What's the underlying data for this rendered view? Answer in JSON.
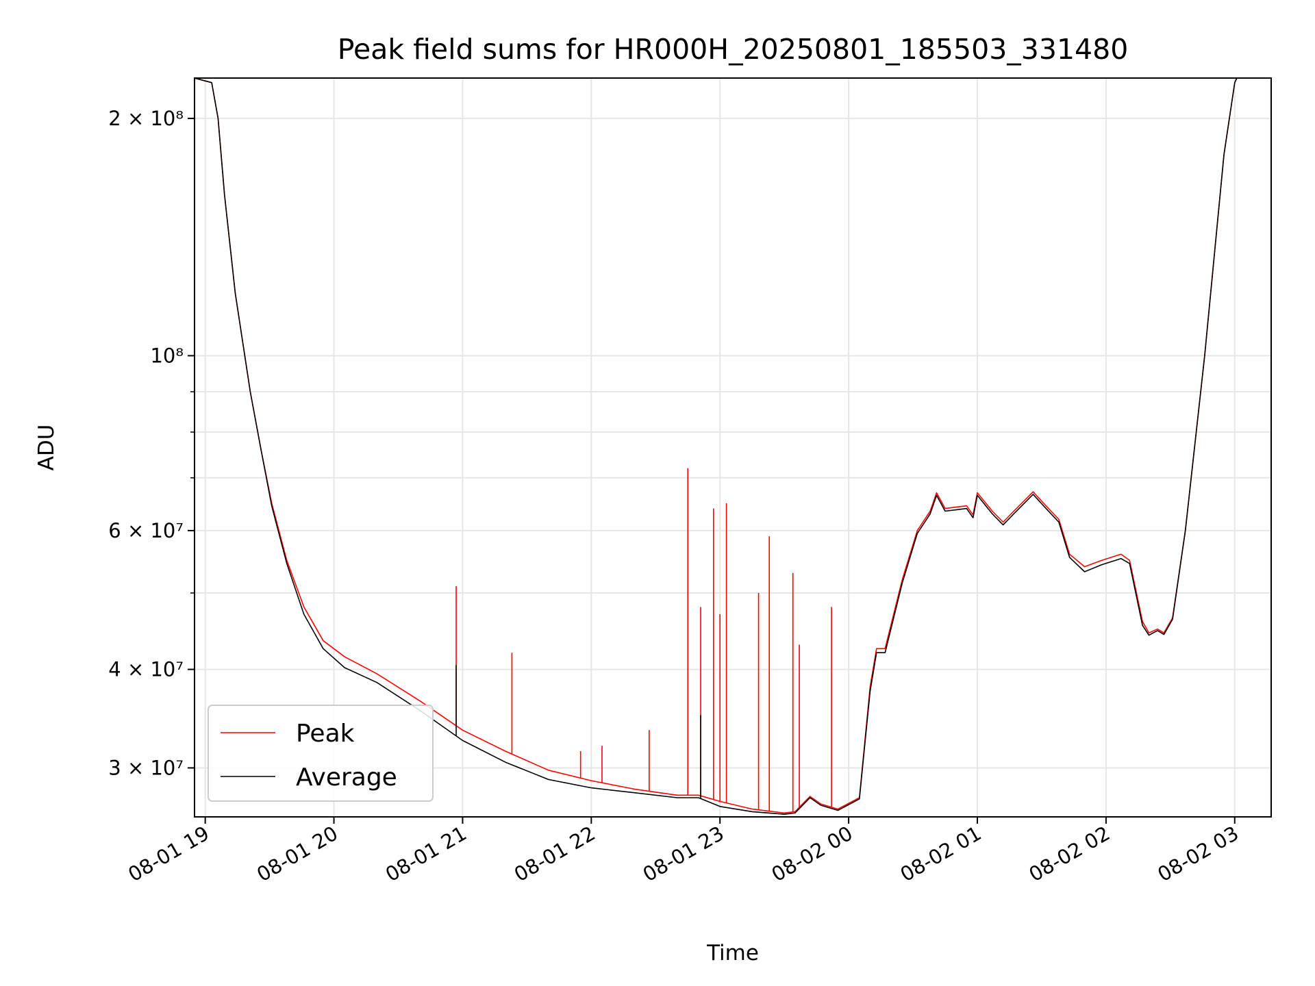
{
  "chart_data": {
    "type": "line",
    "title": "Peak field sums for HR000H_20250801_185503_331480",
    "xlabel": "Time",
    "ylabel": "ADU",
    "x_scale": "time",
    "y_scale": "log",
    "xlim": [
      "2025-08-01 18:55",
      "2025-08-02 03:17"
    ],
    "ylim": [
      26000000,
      225000000
    ],
    "grid": true,
    "legend": {
      "position": "lower-left"
    },
    "x_ticks": [
      {
        "value": "2025-08-01 19:00",
        "label": "08-01 19"
      },
      {
        "value": "2025-08-01 20:00",
        "label": "08-01 20"
      },
      {
        "value": "2025-08-01 21:00",
        "label": "08-01 21"
      },
      {
        "value": "2025-08-01 22:00",
        "label": "08-01 22"
      },
      {
        "value": "2025-08-01 23:00",
        "label": "08-01 23"
      },
      {
        "value": "2025-08-02 00:00",
        "label": "08-02 00"
      },
      {
        "value": "2025-08-02 01:00",
        "label": "08-02 01"
      },
      {
        "value": "2025-08-02 02:00",
        "label": "08-02 02"
      },
      {
        "value": "2025-08-02 03:00",
        "label": "08-02 03"
      }
    ],
    "y_ticks": [
      {
        "value": 30000000,
        "label": "3 × 10⁷"
      },
      {
        "value": 40000000,
        "label": "4 × 10⁷"
      },
      {
        "value": 60000000,
        "label": "6 × 10⁷"
      },
      {
        "value": 100000000,
        "label": "10⁸"
      },
      {
        "value": 200000000,
        "label": "2 × 10⁸"
      }
    ],
    "series": [
      {
        "name": "Peak",
        "color": "#ff0000",
        "points": [
          [
            "2025-08-01 18:55",
            225000000
          ],
          [
            "2025-08-01 19:03",
            222000000
          ],
          [
            "2025-08-01 19:06",
            200000000
          ],
          [
            "2025-08-01 19:09",
            160000000
          ],
          [
            "2025-08-01 19:14",
            120000000
          ],
          [
            "2025-08-01 19:21",
            90000000
          ],
          [
            "2025-08-01 19:26",
            76000000
          ],
          [
            "2025-08-01 19:31",
            65000000
          ],
          [
            "2025-08-01 19:38",
            55000000
          ],
          [
            "2025-08-01 19:46",
            48000000
          ],
          [
            "2025-08-01 19:55",
            43500000
          ],
          [
            "2025-08-01 20:05",
            41500000
          ],
          [
            "2025-08-01 20:20",
            39500000
          ],
          [
            "2025-08-01 20:40",
            36500000
          ],
          [
            "2025-08-01 21:00",
            33500000
          ],
          [
            "2025-08-01 21:20",
            31500000
          ],
          [
            "2025-08-01 21:40",
            29800000
          ],
          [
            "2025-08-01 22:00",
            28900000
          ],
          [
            "2025-08-01 22:20",
            28200000
          ],
          [
            "2025-08-01 22:40",
            27700000
          ],
          [
            "2025-08-01 22:50",
            27700000
          ],
          [
            "2025-08-01 23:00",
            27200000
          ],
          [
            "2025-08-01 23:15",
            26600000
          ],
          [
            "2025-08-01 23:30",
            26300000
          ],
          [
            "2025-08-01 23:35",
            26400000
          ],
          [
            "2025-08-01 23:42",
            27600000
          ],
          [
            "2025-08-01 23:47",
            27000000
          ],
          [
            "2025-08-01 23:55",
            26600000
          ],
          [
            "2025-08-02 00:05",
            27500000
          ],
          [
            "2025-08-02 00:10",
            38000000
          ],
          [
            "2025-08-02 00:13",
            42500000
          ],
          [
            "2025-08-02 00:17",
            42500000
          ],
          [
            "2025-08-02 00:25",
            52000000
          ],
          [
            "2025-08-02 00:32",
            60000000
          ],
          [
            "2025-08-02 00:38",
            63500000
          ],
          [
            "2025-08-02 00:41",
            67000000
          ],
          [
            "2025-08-02 00:45",
            64000000
          ],
          [
            "2025-08-02 00:55",
            64500000
          ],
          [
            "2025-08-02 00:58",
            62800000
          ],
          [
            "2025-08-02 01:00",
            67000000
          ],
          [
            "2025-08-02 01:07",
            63500000
          ],
          [
            "2025-08-02 01:12",
            61500000
          ],
          [
            "2025-08-02 01:17",
            63500000
          ],
          [
            "2025-08-02 01:26",
            67200000
          ],
          [
            "2025-08-02 01:32",
            64500000
          ],
          [
            "2025-08-02 01:38",
            62000000
          ],
          [
            "2025-08-02 01:43",
            56000000
          ],
          [
            "2025-08-02 01:50",
            54000000
          ],
          [
            "2025-08-02 01:58",
            55000000
          ],
          [
            "2025-08-02 02:07",
            56000000
          ],
          [
            "2025-08-02 02:11",
            55000000
          ],
          [
            "2025-08-02 02:17",
            46000000
          ],
          [
            "2025-08-02 02:20",
            44500000
          ],
          [
            "2025-08-02 02:24",
            45000000
          ],
          [
            "2025-08-02 02:27",
            44500000
          ],
          [
            "2025-08-02 02:31",
            46500000
          ],
          [
            "2025-08-02 02:37",
            60000000
          ],
          [
            "2025-08-02 02:46",
            100000000
          ],
          [
            "2025-08-02 02:55",
            180000000
          ],
          [
            "2025-08-02 03:00",
            222000000
          ],
          [
            "2025-08-02 03:01",
            225000000
          ]
        ],
        "spikes": [
          [
            "2025-08-01 20:57",
            51000000
          ],
          [
            "2025-08-01 21:23",
            42000000
          ],
          [
            "2025-08-01 22:45",
            72000000
          ],
          [
            "2025-08-01 22:51",
            48000000
          ],
          [
            "2025-08-01 22:57",
            64000000
          ],
          [
            "2025-08-01 23:00",
            47000000
          ],
          [
            "2025-08-01 23:03",
            65000000
          ],
          [
            "2025-08-01 23:18",
            50000000
          ],
          [
            "2025-08-01 23:23",
            59000000
          ],
          [
            "2025-08-01 23:34",
            53000000
          ],
          [
            "2025-08-01 23:37",
            43000000
          ],
          [
            "2025-08-01 23:52",
            48000000
          ],
          [
            "2025-08-01 22:27",
            33500000
          ],
          [
            "2025-08-01 22:05",
            32000000
          ],
          [
            "2025-08-01 21:55",
            31500000
          ]
        ]
      },
      {
        "name": "Average",
        "color": "#000000",
        "points": [
          [
            "2025-08-01 18:55",
            225000000
          ],
          [
            "2025-08-01 19:03",
            222000000
          ],
          [
            "2025-08-01 19:06",
            200000000
          ],
          [
            "2025-08-01 19:09",
            160000000
          ],
          [
            "2025-08-01 19:14",
            120000000
          ],
          [
            "2025-08-01 19:21",
            90000000
          ],
          [
            "2025-08-01 19:26",
            76000000
          ],
          [
            "2025-08-01 19:31",
            64500000
          ],
          [
            "2025-08-01 19:38",
            54500000
          ],
          [
            "2025-08-01 19:46",
            47000000
          ],
          [
            "2025-08-01 19:55",
            42500000
          ],
          [
            "2025-08-01 20:05",
            40200000
          ],
          [
            "2025-08-01 20:20",
            38500000
          ],
          [
            "2025-08-01 20:40",
            35500000
          ],
          [
            "2025-08-01 21:00",
            32500000
          ],
          [
            "2025-08-01 21:20",
            30500000
          ],
          [
            "2025-08-01 21:40",
            29000000
          ],
          [
            "2025-08-01 22:00",
            28300000
          ],
          [
            "2025-08-01 22:20",
            27900000
          ],
          [
            "2025-08-01 22:40",
            27500000
          ],
          [
            "2025-08-01 22:50",
            27500000
          ],
          [
            "2025-08-01 23:00",
            26800000
          ],
          [
            "2025-08-01 23:15",
            26400000
          ],
          [
            "2025-08-01 23:30",
            26200000
          ],
          [
            "2025-08-01 23:35",
            26300000
          ],
          [
            "2025-08-01 23:42",
            27500000
          ],
          [
            "2025-08-01 23:47",
            26900000
          ],
          [
            "2025-08-01 23:55",
            26500000
          ],
          [
            "2025-08-02 00:05",
            27400000
          ],
          [
            "2025-08-02 00:10",
            37500000
          ],
          [
            "2025-08-02 00:13",
            42000000
          ],
          [
            "2025-08-02 00:17",
            42000000
          ],
          [
            "2025-08-02 00:25",
            51500000
          ],
          [
            "2025-08-02 00:32",
            59500000
          ],
          [
            "2025-08-02 00:38",
            63000000
          ],
          [
            "2025-08-02 00:41",
            66500000
          ],
          [
            "2025-08-02 00:45",
            63500000
          ],
          [
            "2025-08-02 00:55",
            64000000
          ],
          [
            "2025-08-02 00:58",
            62300000
          ],
          [
            "2025-08-02 01:00",
            66500000
          ],
          [
            "2025-08-02 01:07",
            63000000
          ],
          [
            "2025-08-02 01:12",
            61000000
          ],
          [
            "2025-08-02 01:17",
            63000000
          ],
          [
            "2025-08-02 01:26",
            66700000
          ],
          [
            "2025-08-02 01:32",
            64000000
          ],
          [
            "2025-08-02 01:38",
            61500000
          ],
          [
            "2025-08-02 01:43",
            55500000
          ],
          [
            "2025-08-02 01:50",
            53200000
          ],
          [
            "2025-08-02 01:58",
            54300000
          ],
          [
            "2025-08-02 02:07",
            55300000
          ],
          [
            "2025-08-02 02:11",
            54500000
          ],
          [
            "2025-08-02 02:17",
            45500000
          ],
          [
            "2025-08-02 02:20",
            44200000
          ],
          [
            "2025-08-02 02:24",
            44800000
          ],
          [
            "2025-08-02 02:27",
            44300000
          ],
          [
            "2025-08-02 02:31",
            46300000
          ],
          [
            "2025-08-02 02:37",
            60000000
          ],
          [
            "2025-08-02 02:46",
            100000000
          ],
          [
            "2025-08-02 02:55",
            180000000
          ],
          [
            "2025-08-02 03:00",
            222000000
          ],
          [
            "2025-08-02 03:01",
            225000000
          ]
        ],
        "spikes": [
          [
            "2025-08-01 20:57",
            40500000
          ],
          [
            "2025-08-01 22:51",
            35000000
          ]
        ]
      }
    ]
  }
}
